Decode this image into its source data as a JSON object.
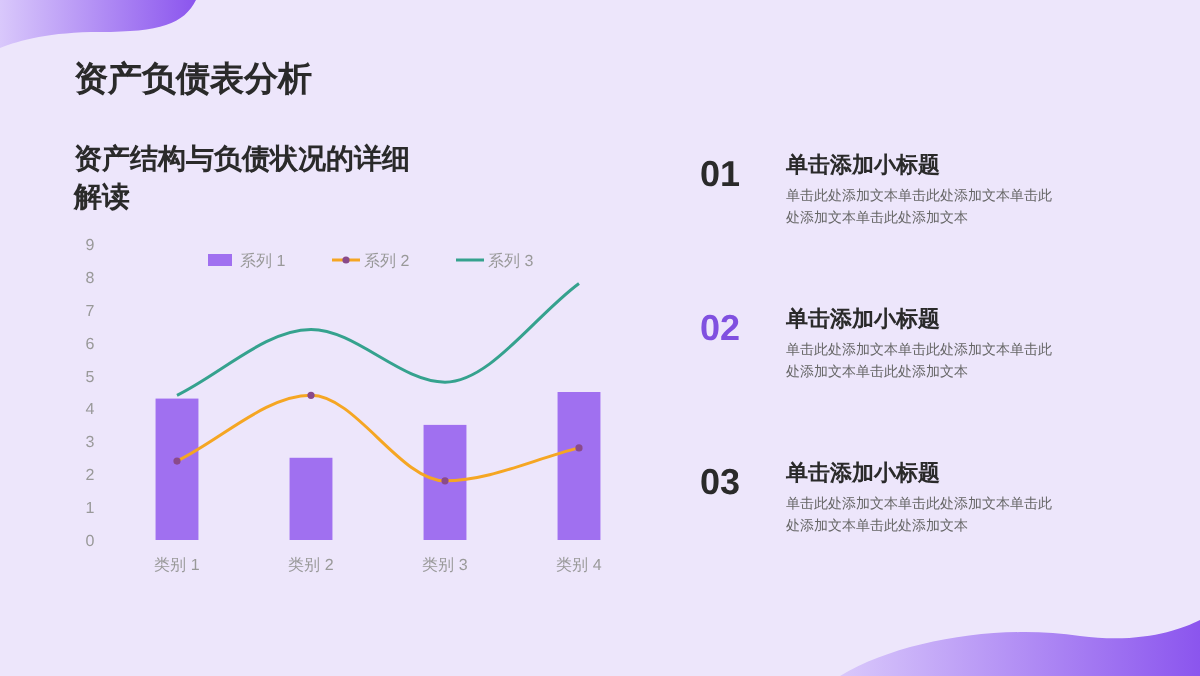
{
  "chart_data": {
    "type": "bar",
    "title": "资产负债表分析",
    "subtitle": "资产结构与负债状况的详细解读",
    "categories": [
      "类别 1",
      "类别 2",
      "类别 3",
      "类别 4"
    ],
    "series": [
      {
        "name": "系列 1",
        "color": "#a070f0",
        "values": [
          4.3,
          2.5,
          3.5,
          4.5
        ]
      },
      {
        "name": "系列 2",
        "type": "line",
        "color": "#f5a623",
        "marker": "circle",
        "values": [
          2.4,
          4.4,
          1.8,
          2.8
        ]
      },
      {
        "name": "系列 3",
        "type": "line",
        "color": "#35a28e",
        "marker": "none",
        "values": [
          4.4,
          6.4,
          4.8,
          7.8
        ]
      }
    ],
    "ylim": [
      0,
      9
    ],
    "yticks": [
      0,
      1,
      2,
      3,
      4,
      5,
      6,
      7,
      8,
      9
    ],
    "grid": false,
    "legend": "top",
    "annotations": [
      "01",
      "单击添加小标题",
      "单击此处添加文本单击此处添加文本单击此处添加文本单击此处添加文本",
      "02",
      "单击添加小标题",
      "单击此处添加文本单击此处添加文本单击此处添加文本单击此处添加文本",
      "03",
      "单击添加小标题",
      "单击此处添加文本单击此处添加文本单击此处添加文本单击此处添加文本"
    ]
  }
}
